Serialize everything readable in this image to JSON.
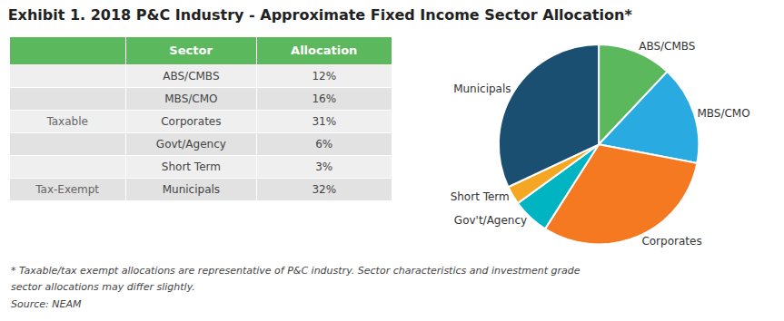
{
  "chart_data": [
    {
      "type": "table",
      "title": "Exhibit 1. 2018 P&C Industry - Approximate Fixed Income Sector Allocation*",
      "columns": [
        "Sector",
        "Allocation"
      ],
      "color": "#5cb85c",
      "series": [
        {
          "name": "Taxable",
          "categories": [
            "ABS/CMBS",
            "MBS/CMO",
            "Corporates",
            "Govt/Agency",
            "Short Term"
          ],
          "values": [
            12,
            16,
            31,
            6,
            3
          ],
          "value_labels": [
            "12%",
            "16%",
            "31%",
            "6%",
            "3%"
          ]
        },
        {
          "name": "Tax-Exempt",
          "categories": [
            "Municipals"
          ],
          "values": [
            32
          ],
          "value_labels": [
            "32%"
          ]
        }
      ],
      "annotations": [
        "* Taxable/tax exempt allocations are representative of P&C industry. Sector characteristics and investment grade",
        "sector allocations may differ slightly.",
        "Source: NEAM"
      ]
    },
    {
      "type": "pie",
      "categories": [
        "ABS/CMBS",
        "MBS/CMO",
        "Corporates",
        "Gov't/Agency",
        "Short Term",
        "Municipals"
      ],
      "values": [
        12,
        16,
        31,
        6,
        3,
        32
      ],
      "colors": [
        "#5cb85c",
        "#29abe2",
        "#f47920",
        "#00b4c1",
        "#f5a623",
        "#1b4f72"
      ]
    }
  ]
}
